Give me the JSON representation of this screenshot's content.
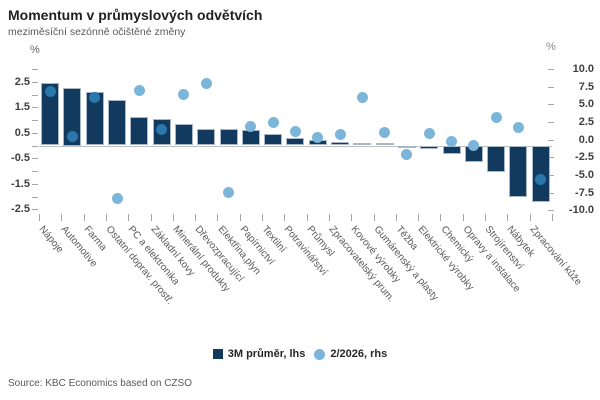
{
  "header": {
    "title": "Momentum v průmyslových odvětvích",
    "subtitle": "meziměsíční sezónně očištěné změny"
  },
  "chart_data": {
    "type": "bar",
    "overlay_type": "scatter",
    "title": "Momentum v průmyslových odvětvích",
    "subtitle": "meziměsíční sezónně očištěné změny",
    "legend_position": "bottom-center",
    "grid": "zero-line-only",
    "categories": [
      "Nápoje",
      "Automotive",
      "Farma",
      "Ostatní doprav. prostř.",
      "PC a elektronika",
      "Základní kovy",
      "Minerální produkty",
      "Dřevozpracující",
      "Elektřina,plyn",
      "Papírnictví",
      "Textilní",
      "Potravinářství",
      "Průmysl",
      "Zpracovatelský prum.",
      "Kovové výrobky",
      "Gumárenský a plasty",
      "Těžba",
      "Elektrické výrobky",
      "Chemický",
      "Opravy a instalace",
      "Strojírenství",
      "Nábytek",
      "Zpracování kůže"
    ],
    "series": [
      {
        "name": "3M průměr, lhs",
        "type": "bar",
        "axis": "lhs",
        "values": [
          2.45,
          2.25,
          2.1,
          1.8,
          1.1,
          1.05,
          0.85,
          0.65,
          0.65,
          0.6,
          0.45,
          0.3,
          0.2,
          0.15,
          0.1,
          0.1,
          -0.1,
          -0.15,
          -0.35,
          -0.65,
          -1.05,
          -2.0,
          -2.2
        ]
      },
      {
        "name": "2/2026, rhs",
        "type": "scatter",
        "axis": "rhs",
        "values": [
          6.8,
          0.4,
          6.0,
          -8.4,
          7.0,
          1.5,
          6.4,
          8.0,
          -7.5,
          1.9,
          2.4,
          1.2,
          0.3,
          0.8,
          6.0,
          1.0,
          -2.1,
          0.9,
          -0.3,
          -0.8,
          3.1,
          1.8,
          -5.6
        ]
      }
    ],
    "left_axis": {
      "unit": "%",
      "min": -2.5,
      "max": 3.0,
      "tick_step": 0.5,
      "labeled_ticks": [
        "2.5",
        "1.5",
        "0.5",
        "-0.5",
        "-1.5",
        "-2.5"
      ]
    },
    "right_axis": {
      "unit": "%",
      "min": -10.0,
      "max": 10.0,
      "tick_labels": [
        "10.0",
        "7.5",
        "5.0",
        "2.5",
        "0.0",
        "-2.5",
        "-5.0",
        "-7.5",
        "-10.0"
      ]
    }
  },
  "colors": {
    "bar": "#123a5f",
    "dot": "#7cb5da",
    "dot_on_bar": "#2a77ac",
    "zero_line": "#bfbfbf",
    "tick": "#a6a6a6"
  },
  "source": "Source: KBC Economics based on CZSO"
}
